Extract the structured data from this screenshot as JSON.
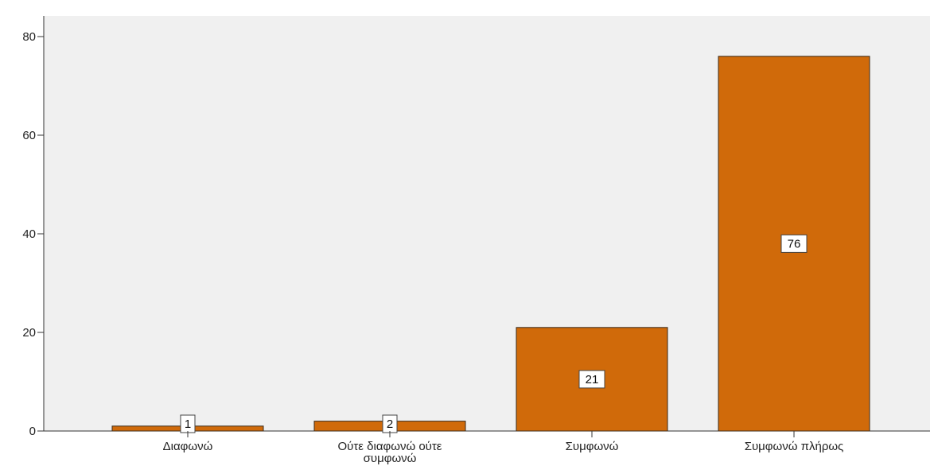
{
  "chart_data": {
    "type": "bar",
    "categories": [
      "Διαφωνώ",
      "Ούτε διαφωνώ ούτε συμφωνώ",
      "Συμφωνώ",
      "Συμφωνώ πλήρως"
    ],
    "category_lines": [
      [
        "Διαφωνώ"
      ],
      [
        "Ούτε διαφωνώ ούτε",
        "συμφωνώ"
      ],
      [
        "Συμφωνώ"
      ],
      [
        "Συμφωνώ πλήρως"
      ]
    ],
    "values": [
      1,
      2,
      21,
      76
    ],
    "data_labels": [
      "1",
      "2",
      "21",
      "76"
    ],
    "title": "",
    "xlabel": "",
    "ylabel": "",
    "ylim": [
      0,
      80
    ],
    "yticks": [
      0,
      20,
      40,
      60,
      80
    ],
    "grid": false,
    "colors": {
      "bar_fill": "#d06a0a",
      "bar_stroke": "#3a2a1a",
      "plot_bg": "#f0f0f0",
      "axis": "#333333"
    }
  }
}
